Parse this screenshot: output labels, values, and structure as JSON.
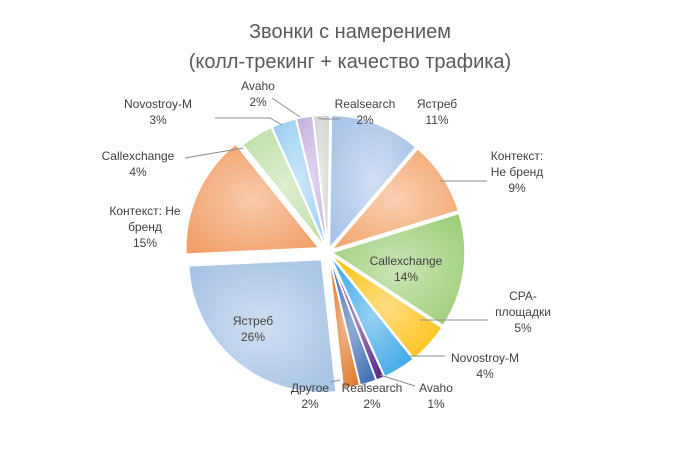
{
  "chart_data": {
    "type": "pie",
    "title_lines": [
      "Звонки с намерением",
      "(колл-трекинг + качество трафика)"
    ],
    "slices": [
      {
        "label_lines": [
          "Realsearch"
        ],
        "percent_label": "2%",
        "value": 2,
        "color": "#d5d5d5",
        "label_inside": false
      },
      {
        "label_lines": [
          "Ястреб"
        ],
        "percent_label": "11%",
        "value": 11,
        "color": "#a9c4e8",
        "label_inside": false
      },
      {
        "label_lines": [
          "Контекст:",
          "Не бренд"
        ],
        "percent_label": "9%",
        "value": 9,
        "color": "#f4a872",
        "label_inside": false
      },
      {
        "label_lines": [
          "Callexchange"
        ],
        "percent_label": "14%",
        "value": 14,
        "color": "#9fcf7c",
        "label_inside": true
      },
      {
        "label_lines": [
          "CPA-",
          "площадки"
        ],
        "percent_label": "5%",
        "value": 5,
        "color": "#ffc21a",
        "label_inside": false
      },
      {
        "label_lines": [
          "Novostroy-M"
        ],
        "percent_label": "4%",
        "value": 4,
        "color": "#3fa9e8",
        "label_inside": false
      },
      {
        "label_lines": [
          "Avaho"
        ],
        "percent_label": "1%",
        "value": 1,
        "color": "#5a2d8c",
        "label_inside": false
      },
      {
        "label_lines": [
          "Realsearch"
        ],
        "percent_label": "2%",
        "value": 2,
        "color": "#3f6fb5",
        "label_inside": false
      },
      {
        "label_lines": [
          "Другое"
        ],
        "percent_label": "2%",
        "value": 2,
        "color": "#e07a2e",
        "label_inside": false
      },
      {
        "label_lines": [
          "Ястреб"
        ],
        "percent_label": "26%",
        "value": 26,
        "color": "#a8c4e6",
        "label_inside": true
      },
      {
        "label_lines": [
          "Контекст: Не",
          "бренд"
        ],
        "percent_label": "15%",
        "value": 15,
        "color": "#f2a06a",
        "label_inside": false
      },
      {
        "label_lines": [
          "Callexchange"
        ],
        "percent_label": "4%",
        "value": 4,
        "color": "#bfe0a8",
        "label_inside": false
      },
      {
        "label_lines": [
          "Novostroy-M"
        ],
        "percent_label": "3%",
        "value": 3,
        "color": "#9ed0f2",
        "label_inside": false
      },
      {
        "label_lines": [
          "Avaho"
        ],
        "percent_label": "2%",
        "value": 2,
        "color": "#c7b3e0",
        "label_inside": false
      }
    ]
  }
}
